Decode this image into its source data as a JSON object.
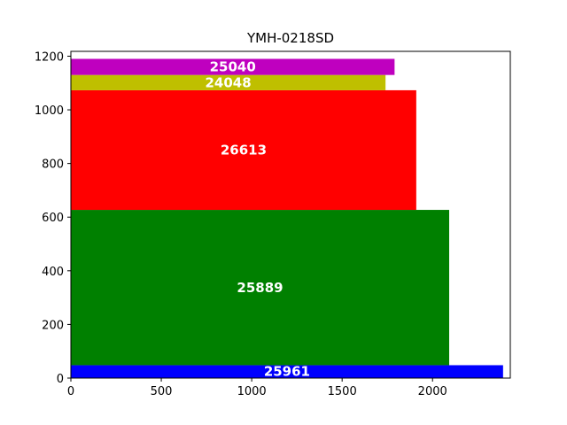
{
  "chart_data": {
    "type": "bar",
    "orientation": "horizontal-stacked-rectangles",
    "title": "YMH-0218SD",
    "xlabel": "",
    "ylabel": "",
    "xlim": [
      0,
      2430
    ],
    "ylim": [
      0,
      1218
    ],
    "xticks": [
      0,
      500,
      1000,
      1500,
      2000
    ],
    "yticks": [
      0,
      200,
      400,
      600,
      800,
      1000,
      1200
    ],
    "grid": false,
    "bars": [
      {
        "label": "25961",
        "y_start": 0,
        "y_end": 48,
        "x_end": 2390,
        "color": "#0000ff"
      },
      {
        "label": "25889",
        "y_start": 48,
        "y_end": 627,
        "x_end": 2092,
        "color": "#008000"
      },
      {
        "label": "26613",
        "y_start": 627,
        "y_end": 1073,
        "x_end": 1910,
        "color": "#ff0000"
      },
      {
        "label": "24048",
        "y_start": 1073,
        "y_end": 1130,
        "x_end": 1740,
        "color": "#bfbf00"
      },
      {
        "label": "25040",
        "y_start": 1130,
        "y_end": 1190,
        "x_end": 1790,
        "color": "#bf00bf"
      }
    ]
  }
}
